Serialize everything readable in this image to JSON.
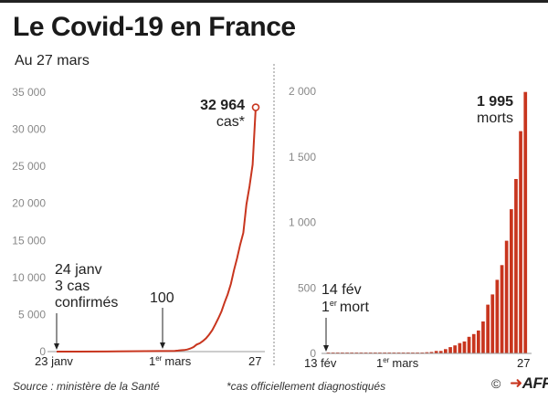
{
  "header": {
    "title": "Le Covid-19 en France",
    "subtitle": "Au 27 mars"
  },
  "footer": {
    "source": "Source : ministère de la Santé",
    "note": "*cas officiellement diagnostiqués",
    "copyright": "©",
    "brand": "AFP"
  },
  "colors": {
    "accent": "#c8351e",
    "text": "#222222",
    "axis": "#888888"
  },
  "chart_data": [
    {
      "type": "line",
      "title": "",
      "ylim": [
        0,
        35000
      ],
      "y_ticks": [
        "35 000",
        "30 000",
        "25 000",
        "20 000",
        "15 000",
        "10 000",
        "5 000",
        "0"
      ],
      "x_tick_labels": {
        "left": "23 janv",
        "mid_num": "1",
        "mid_sup": "er",
        "mid_month": "mars",
        "right": "27"
      },
      "x": [
        "23 janv",
        "24 janv",
        "25 janv",
        "30 janv",
        "8 fév",
        "1 mars",
        "2 mars",
        "3 mars",
        "4 mars",
        "5 mars",
        "6 mars",
        "7 mars",
        "8 mars",
        "9 mars",
        "10 mars",
        "11 mars",
        "12 mars",
        "13 mars",
        "14 mars",
        "15 mars",
        "16 mars",
        "17 mars",
        "18 mars",
        "19 mars",
        "20 mars",
        "21 mars",
        "22 mars",
        "23 mars",
        "24 mars",
        "25 mars",
        "26 mars",
        "27 mars"
      ],
      "values": [
        0,
        3,
        3,
        6,
        11,
        100,
        130,
        191,
        212,
        285,
        423,
        613,
        949,
        1126,
        1412,
        1784,
        2281,
        2876,
        3661,
        4500,
        5423,
        6633,
        7730,
        9134,
        10995,
        12612,
        14459,
        16018,
        19856,
        22304,
        25233,
        32964
      ],
      "annotations": {
        "end_value": "32 964",
        "end_label": "cas*",
        "first_date": "24 janv",
        "first_line1": "3 cas",
        "first_line2": "confirmés",
        "mid_value": "100"
      }
    },
    {
      "type": "bar",
      "title": "",
      "ylim": [
        0,
        2000
      ],
      "y_ticks": [
        "2 000",
        "1 500",
        "1 000",
        "500",
        "0"
      ],
      "x_tick_labels": {
        "left": "13 fév",
        "mid_num": "1",
        "mid_sup": "er",
        "mid_month": "mars",
        "right": "27"
      },
      "categories": [
        "13 fév",
        "14 fév",
        "15 fév",
        "16 fév",
        "17 fév",
        "18 fév",
        "19 fév",
        "20 fév",
        "21 fév",
        "22 fév",
        "23 fév",
        "24 fév",
        "25 fév",
        "26 fév",
        "27 fév",
        "28 fév",
        "29 fév",
        "1 mars",
        "2 mars",
        "3 mars",
        "4 mars",
        "5 mars",
        "6 mars",
        "7 mars",
        "8 mars",
        "9 mars",
        "10 mars",
        "11 mars",
        "12 mars",
        "13 mars",
        "14 mars",
        "15 mars",
        "16 mars",
        "17 mars",
        "18 mars",
        "19 mars",
        "20 mars",
        "21 mars",
        "22 mars",
        "23 mars",
        "24 mars",
        "25 mars",
        "26 mars",
        "27 mars"
      ],
      "values": [
        0,
        1,
        1,
        1,
        1,
        1,
        1,
        1,
        1,
        1,
        1,
        1,
        1,
        2,
        2,
        2,
        2,
        2,
        2,
        3,
        4,
        6,
        9,
        11,
        19,
        19,
        33,
        48,
        61,
        79,
        91,
        127,
        148,
        175,
        244,
        372,
        450,
        562,
        674,
        860,
        1100,
        1331,
        1696,
        1995
      ],
      "annotations": {
        "end_value": "1 995",
        "end_label": "morts",
        "first_date": "14 fév",
        "first_num": "1",
        "first_sup": "er",
        "first_word": "mort"
      }
    }
  ]
}
